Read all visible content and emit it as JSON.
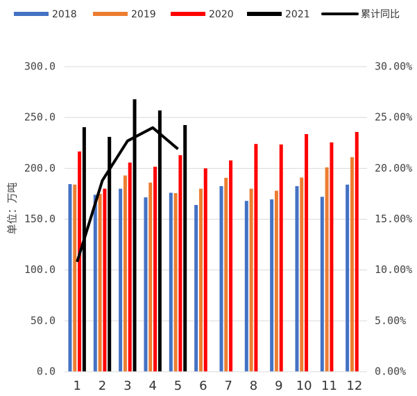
{
  "chart_data": {
    "type": "bar",
    "y_axis_label": "单位：万吨",
    "categories": [
      "1",
      "2",
      "3",
      "4",
      "5",
      "6",
      "7",
      "8",
      "9",
      "10",
      "11",
      "12"
    ],
    "series": [
      {
        "name": "2018",
        "color": "#4472c4",
        "values": [
          184.5,
          174,
          180,
          171.5,
          176,
          164,
          182.5,
          168,
          169.5,
          182.5,
          172,
          184
        ]
      },
      {
        "name": "2019",
        "color": "#ed7d31",
        "values": [
          184,
          175,
          193,
          186,
          175.6,
          180,
          190.7,
          180,
          178,
          191,
          201,
          211
        ]
      },
      {
        "name": "2020",
        "color": "#ff0000",
        "values": [
          216.6,
          180,
          205.7,
          201.6,
          213,
          200,
          207.8,
          224,
          223.5,
          233.7,
          225.5,
          235.8
        ]
      },
      {
        "name": "2021",
        "color": "#000000",
        "values": [
          240.5,
          231,
          268,
          257,
          242.6,
          null,
          null,
          null,
          null,
          null,
          null,
          null
        ]
      },
      {
        "name": "累计同比",
        "color": "#000000",
        "type": "line",
        "axis": "y2",
        "values": [
          10.8,
          18.8,
          22.7,
          24.0,
          21.9,
          null,
          null,
          null,
          null,
          null,
          null,
          null
        ]
      }
    ],
    "ylim": [
      0,
      300
    ],
    "yticks": [
      {
        "value": 0,
        "label": "0.0"
      },
      {
        "value": 50,
        "label": "50.0"
      },
      {
        "value": 100,
        "label": "100.0"
      },
      {
        "value": 150,
        "label": "150.0"
      },
      {
        "value": 200,
        "label": "200.0"
      },
      {
        "value": 250,
        "label": "250.0"
      },
      {
        "value": 300,
        "label": "300.0"
      }
    ],
    "y2lim": [
      0,
      30
    ],
    "y2ticks": [
      {
        "value": 0,
        "label": "0.00%"
      },
      {
        "value": 5,
        "label": "5.00%"
      },
      {
        "value": 10,
        "label": "10.00%"
      },
      {
        "value": 15,
        "label": "15.00%"
      },
      {
        "value": 20,
        "label": "20.00%"
      },
      {
        "value": 25,
        "label": "25.00%"
      },
      {
        "value": 30,
        "label": "30.00%"
      }
    ],
    "grid": true,
    "legend": "top"
  }
}
